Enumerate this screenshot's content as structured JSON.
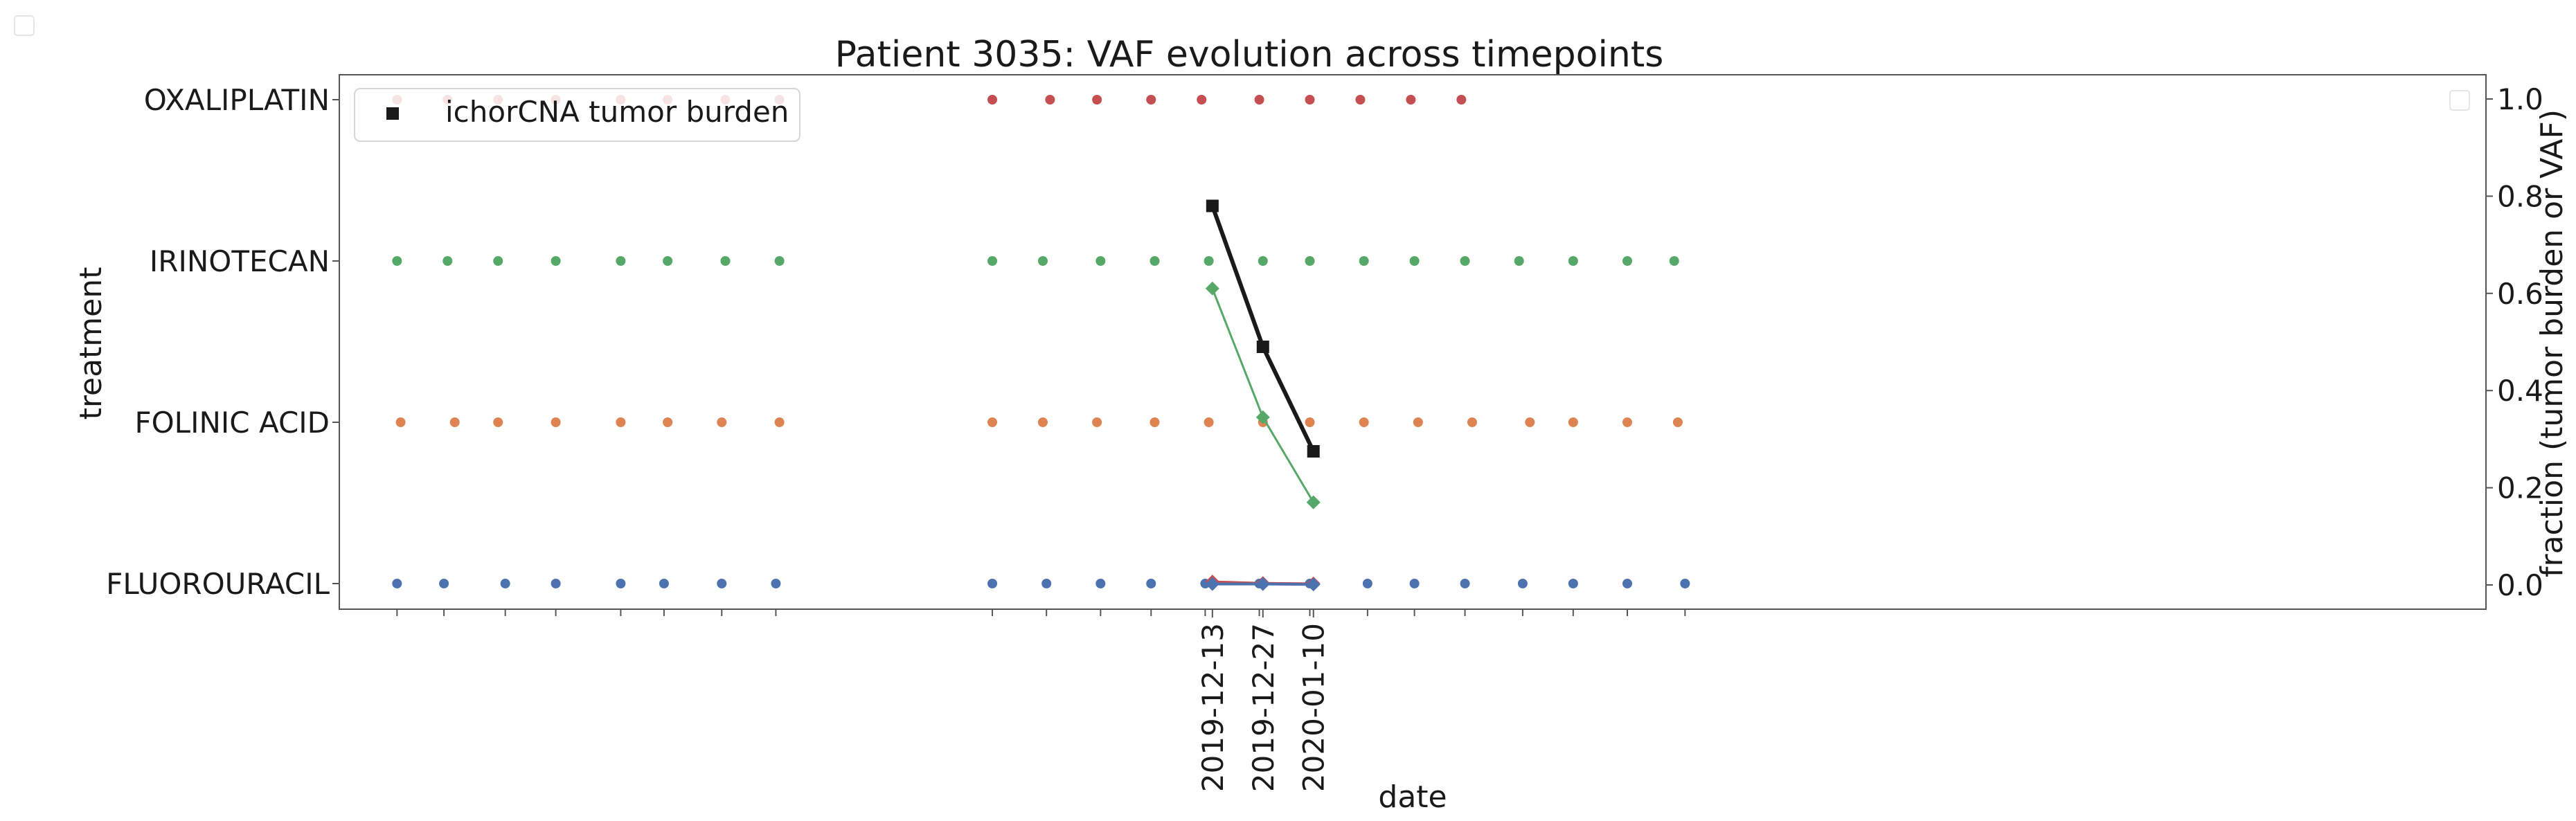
{
  "chart_data": {
    "type": "scatter",
    "title": "Patient 3035: VAF evolution across timepoints",
    "xlabel": "date",
    "ylabel_left": "treatment",
    "ylabel_right": "fraction (tumor burden or VAF)",
    "treatments": [
      "FLUOROURACIL",
      "FOLINIC ACID",
      "IRINOTECAN",
      "OXALIPLATIN"
    ],
    "dates": [
      "2019-12-13",
      "2019-12-27",
      "2020-01-10"
    ],
    "date_range": [
      "2019-04-15",
      "2020-11-30"
    ],
    "y_right_lim": [
      0.0,
      1.0
    ],
    "y_right_ticks": [
      "0.0",
      "0.2",
      "0.4",
      "0.6",
      "0.8",
      "1.0"
    ],
    "legend": {
      "label": "ichorCNA tumor burden",
      "placement": "upper left"
    },
    "colors": {
      "FLUOROURACIL": "#4c72b0",
      "FOLINIC ACID": "#dd8452",
      "IRINOTECAN": "#55a868",
      "OXALIPLATIN": "#c44e52",
      "tumor_burden": "#1a1a1a",
      "vaf_high": "#55a868",
      "vaf_low": "#4c72b0",
      "vaf_low_mid": "#c44e52"
    },
    "treatment_events": {
      "OXALIPLATIN": [
        "2019-05-01",
        "2019-05-15",
        "2019-05-29",
        "2019-06-14",
        "2019-07-02",
        "2019-07-15",
        "2019-07-31",
        "2019-08-15",
        "2019-10-13",
        "2019-10-29",
        "2019-11-11",
        "2019-11-26",
        "2019-12-10",
        "2019-12-26",
        "2020-01-09",
        "2020-01-23",
        "2020-02-06",
        "2020-02-20"
      ],
      "IRINOTECAN": [
        "2019-05-01",
        "2019-05-15",
        "2019-05-29",
        "2019-06-14",
        "2019-07-02",
        "2019-07-15",
        "2019-07-31",
        "2019-08-15",
        "2019-10-13",
        "2019-10-27",
        "2019-11-12",
        "2019-11-27",
        "2019-12-12",
        "2019-12-27",
        "2020-01-09",
        "2020-01-24",
        "2020-02-07",
        "2020-02-21",
        "2020-03-07",
        "2020-03-22",
        "2020-04-06",
        "2020-04-19"
      ],
      "FOLINIC ACID": [
        "2019-05-02",
        "2019-05-17",
        "2019-05-29",
        "2019-06-14",
        "2019-07-02",
        "2019-07-15",
        "2019-07-30",
        "2019-08-15",
        "2019-10-13",
        "2019-10-27",
        "2019-11-11",
        "2019-11-27",
        "2019-12-12",
        "2019-12-27",
        "2020-01-09",
        "2020-01-24",
        "2020-02-08",
        "2020-02-23",
        "2020-03-10",
        "2020-03-22",
        "2020-04-06",
        "2020-04-20"
      ],
      "FLUOROURACIL": [
        "2019-05-01",
        "2019-05-14",
        "2019-05-31",
        "2019-06-14",
        "2019-07-02",
        "2019-07-14",
        "2019-07-30",
        "2019-08-14",
        "2019-10-13",
        "2019-10-28",
        "2019-11-12",
        "2019-11-26",
        "2019-12-11",
        "2019-12-26",
        "2020-01-09",
        "2020-01-25",
        "2020-02-07",
        "2020-02-21",
        "2020-03-08",
        "2020-03-22",
        "2020-04-06",
        "2020-04-22"
      ]
    },
    "series": [
      {
        "name": "ichorCNA tumor burden",
        "marker": "square",
        "x": [
          "2019-12-13",
          "2019-12-27",
          "2020-01-10"
        ],
        "y": [
          0.78,
          0.49,
          0.275
        ]
      },
      {
        "marker": "diamond",
        "x": [
          "2019-12-13",
          "2019-12-27",
          "2020-01-10"
        ],
        "y": [
          0.61,
          0.345,
          0.17
        ]
      },
      {
        "marker": "diamond",
        "x": [
          "2019-12-13",
          "2019-12-27",
          "2020-01-10"
        ],
        "y": [
          0.007,
          0.004,
          0.003
        ]
      },
      {
        "marker": "diamond",
        "x": [
          "2019-12-13",
          "2019-12-27",
          "2020-01-10"
        ],
        "y": [
          0.002,
          0.002,
          0.001
        ]
      }
    ],
    "grid": false
  }
}
